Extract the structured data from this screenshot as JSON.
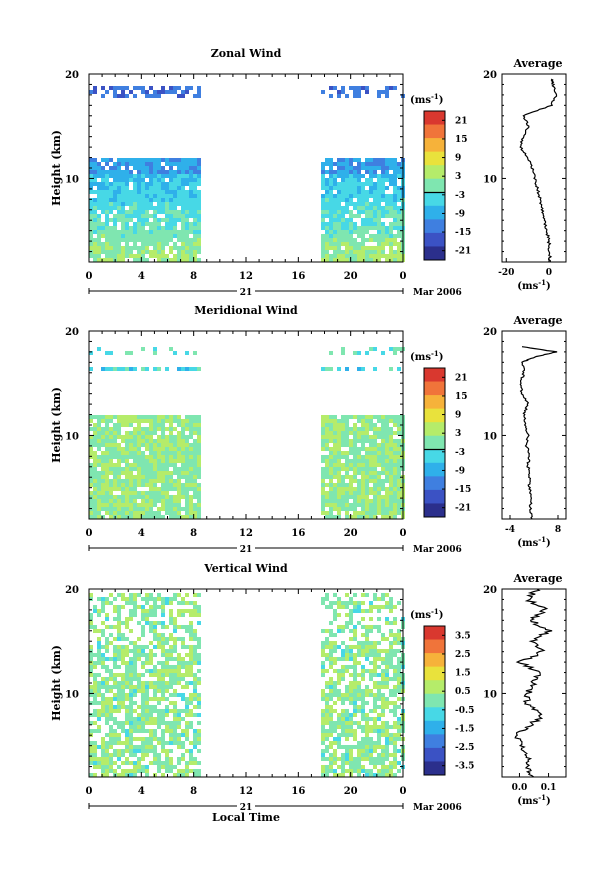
{
  "chart_data": [
    {
      "type": "heatmap",
      "title": "Zonal Wind",
      "ylabel": "Height (km)",
      "yticks": [
        "10",
        "20"
      ],
      "ylim": [
        2,
        20
      ],
      "xticks": [
        "0",
        "4",
        "8",
        "12",
        "16",
        "20",
        "0"
      ],
      "xlim": [
        0,
        24
      ],
      "date_day": "21",
      "date_label": "Mar 2006",
      "colorbar_unit": "(ms",
      "colorbar_unit_exp": "-1",
      "colorbar_ticks": [
        "21",
        "15",
        "9",
        "3",
        "-3",
        "-9",
        "-15",
        "-21"
      ],
      "colorbar_range": [
        -24,
        24
      ],
      "data_gap_hours": [
        8.5,
        17.5
      ],
      "average_title": "Average",
      "average_xticks": [
        "-20",
        "0"
      ],
      "average_xlim": [
        -22,
        8
      ],
      "average_xlabel": "(ms",
      "average_xlabel_exp": "-1",
      "average_profile": {
        "height_km": [
          2,
          3,
          4,
          5,
          6,
          7,
          8,
          9,
          10,
          11,
          12,
          13,
          14,
          15,
          16,
          17,
          18,
          19,
          19.5
        ],
        "value": [
          0.5,
          0.3,
          0.0,
          -1.0,
          -2.0,
          -3.0,
          -4.0,
          -5.5,
          -6.5,
          -8.0,
          -10.0,
          -13.5,
          -12.0,
          -9.5,
          -12.0,
          1.0,
          3.5,
          2.0,
          1.0
        ]
      }
    },
    {
      "type": "heatmap",
      "title": "Meridional Wind",
      "ylabel": "Height (km)",
      "yticks": [
        "10",
        "20"
      ],
      "ylim": [
        2,
        20
      ],
      "xticks": [
        "0",
        "4",
        "8",
        "12",
        "16",
        "20",
        "0"
      ],
      "xlim": [
        0,
        24
      ],
      "date_day": "21",
      "date_label": "Mar 2006",
      "colorbar_unit": "(ms",
      "colorbar_unit_exp": "-1",
      "colorbar_ticks": [
        "21",
        "15",
        "9",
        "3",
        "-3",
        "-9",
        "-15",
        "-21"
      ],
      "colorbar_range": [
        -24,
        24
      ],
      "data_gap_hours": [
        8.5,
        17.5
      ],
      "average_title": "Average",
      "average_xticks": [
        "-4",
        "8"
      ],
      "average_xlim": [
        -6,
        10
      ],
      "average_xlabel": "(ms",
      "average_xlabel_exp": "-1",
      "average_profile": {
        "height_km": [
          2,
          3,
          4,
          5,
          6,
          7,
          8,
          9,
          10,
          11,
          12,
          13,
          14,
          15,
          16,
          17,
          17.5,
          18,
          18.5
        ],
        "value": [
          1.5,
          1.0,
          1.3,
          0.8,
          1.0,
          0.5,
          0.8,
          0.2,
          0.5,
          0.0,
          -0.5,
          0.5,
          -1.0,
          -1.5,
          -0.5,
          -1.0,
          2.0,
          7.5,
          -1.0
        ]
      }
    },
    {
      "type": "heatmap",
      "title": "Vertical Wind",
      "ylabel": "Height (km)",
      "yticks": [
        "10",
        "20"
      ],
      "ylim": [
        2,
        20
      ],
      "xticks": [
        "0",
        "4",
        "8",
        "12",
        "16",
        "20",
        "0"
      ],
      "xlim": [
        0,
        24
      ],
      "xlabel": "Local Time",
      "date_day": "21",
      "date_label": "Mar 2006",
      "colorbar_unit": "(ms",
      "colorbar_unit_exp": "-1",
      "colorbar_ticks": [
        "3.5",
        "2.5",
        "1.5",
        "0.5",
        "-0.5",
        "-1.5",
        "-2.5",
        "-3.5"
      ],
      "colorbar_range": [
        -4,
        4
      ],
      "data_gap_hours": [
        8.5,
        17.5
      ],
      "average_title": "Average",
      "average_xticks": [
        "0.0",
        "0.1"
      ],
      "average_xlim": [
        -0.06,
        0.16
      ],
      "average_xlabel": "(ms",
      "average_xlabel_exp": "-1",
      "average_profile": {
        "height_km": [
          2,
          3,
          4,
          5,
          6,
          7,
          8,
          9,
          10,
          11,
          12,
          13,
          14,
          15,
          16,
          17,
          18,
          19,
          20
        ],
        "value": [
          0.05,
          0.02,
          0.03,
          0.0,
          -0.01,
          0.04,
          0.08,
          0.02,
          0.03,
          0.05,
          0.07,
          0.0,
          0.08,
          0.05,
          0.1,
          0.04,
          0.09,
          0.03,
          0.06
        ]
      }
    }
  ]
}
